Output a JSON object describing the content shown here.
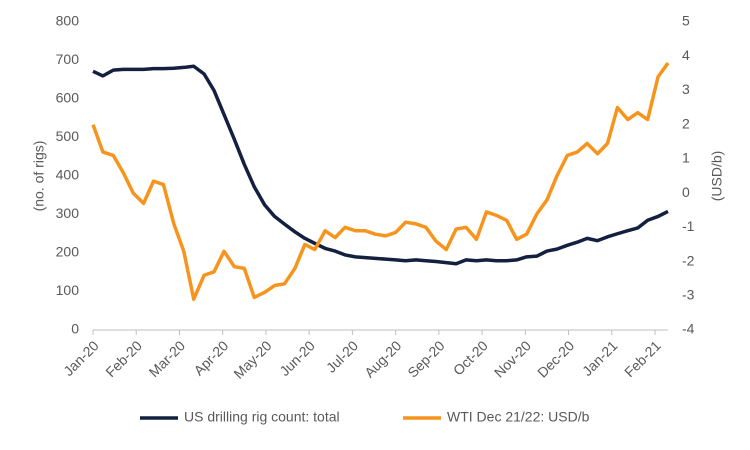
{
  "chart_data": {
    "type": "line",
    "x": [
      0,
      0.23,
      0.47,
      0.7,
      0.93,
      1.17,
      1.4,
      1.63,
      1.87,
      2.1,
      2.33,
      2.57,
      2.8,
      3.03,
      3.27,
      3.5,
      3.73,
      3.97,
      4.2,
      4.43,
      4.67,
      4.9,
      5.13,
      5.37,
      5.6,
      5.83,
      6.07,
      6.3,
      6.53,
      6.77,
      7,
      7.23,
      7.47,
      7.7,
      7.93,
      8.17,
      8.4,
      8.63,
      8.87,
      9.1,
      9.33,
      9.57,
      9.8,
      10.03,
      10.27,
      10.5,
      10.73,
      10.97,
      11.2,
      11.43,
      11.67,
      11.9,
      12.13,
      12.37,
      12.6,
      12.83,
      13.07,
      13.3
    ],
    "xlim": [
      0,
      13.3
    ],
    "xticks": [
      {
        "value": 0,
        "label": "Jan-20"
      },
      {
        "value": 1,
        "label": "Feb-20"
      },
      {
        "value": 2,
        "label": "Mar-20"
      },
      {
        "value": 3,
        "label": "Apr-20"
      },
      {
        "value": 4,
        "label": "May-20"
      },
      {
        "value": 5,
        "label": "Jun-20"
      },
      {
        "value": 6,
        "label": "Jul-20"
      },
      {
        "value": 7,
        "label": "Aug-20"
      },
      {
        "value": 8,
        "label": "Sep-20"
      },
      {
        "value": 9,
        "label": "Oct-20"
      },
      {
        "value": 10,
        "label": "Nov-20"
      },
      {
        "value": 11,
        "label": "Dec-20"
      },
      {
        "value": 12,
        "label": "Jan-21"
      },
      {
        "value": 13,
        "label": "Feb-21"
      }
    ],
    "ylabel": "(no. of rigs)",
    "ylim": [
      0,
      800
    ],
    "yticks": [
      0,
      100,
      200,
      300,
      400,
      500,
      600,
      700,
      800
    ],
    "y2label": "(USD/b)",
    "y2lim": [
      -4,
      5
    ],
    "y2ticks": [
      -4,
      -3,
      -2,
      -1,
      0,
      1,
      2,
      3,
      4,
      5
    ],
    "legend": "bottom",
    "series": [
      {
        "name": "US drilling rig count: total",
        "color": "#14203f",
        "values": [
          672,
          660,
          675,
          677,
          677,
          677,
          679,
          679,
          680,
          682,
          685,
          665,
          622,
          560,
          495,
          430,
          372,
          325,
          295,
          275,
          255,
          238,
          225,
          212,
          205,
          195,
          190,
          188,
          186,
          184,
          182,
          180,
          182,
          180,
          178,
          175,
          172,
          182,
          180,
          182,
          180,
          180,
          182,
          190,
          192,
          205,
          210,
          220,
          228,
          238,
          232,
          242,
          250,
          258,
          265,
          285,
          295,
          308
        ]
      },
      {
        "name": "WTI Dec 21/22: USD/b",
        "color": "#f7941d",
        "axis": "y2",
        "values": [
          2.0,
          1.2,
          1.1,
          0.6,
          0.0,
          -0.3,
          0.35,
          0.25,
          -0.9,
          -1.7,
          -3.1,
          -2.4,
          -2.3,
          -1.7,
          -2.15,
          -2.2,
          -3.05,
          -2.9,
          -2.7,
          -2.65,
          -2.2,
          -1.5,
          -1.65,
          -1.1,
          -1.3,
          -1.0,
          -1.1,
          -1.1,
          -1.2,
          -1.25,
          -1.15,
          -0.85,
          -0.9,
          -1.0,
          -1.4,
          -1.65,
          -1.05,
          -1.0,
          -1.35,
          -0.55,
          -0.65,
          -0.8,
          -1.35,
          -1.2,
          -0.6,
          -0.2,
          0.5,
          1.1,
          1.2,
          1.45,
          1.15,
          1.45,
          2.5,
          2.15,
          2.35,
          2.15,
          3.4,
          3.8
        ]
      }
    ]
  }
}
